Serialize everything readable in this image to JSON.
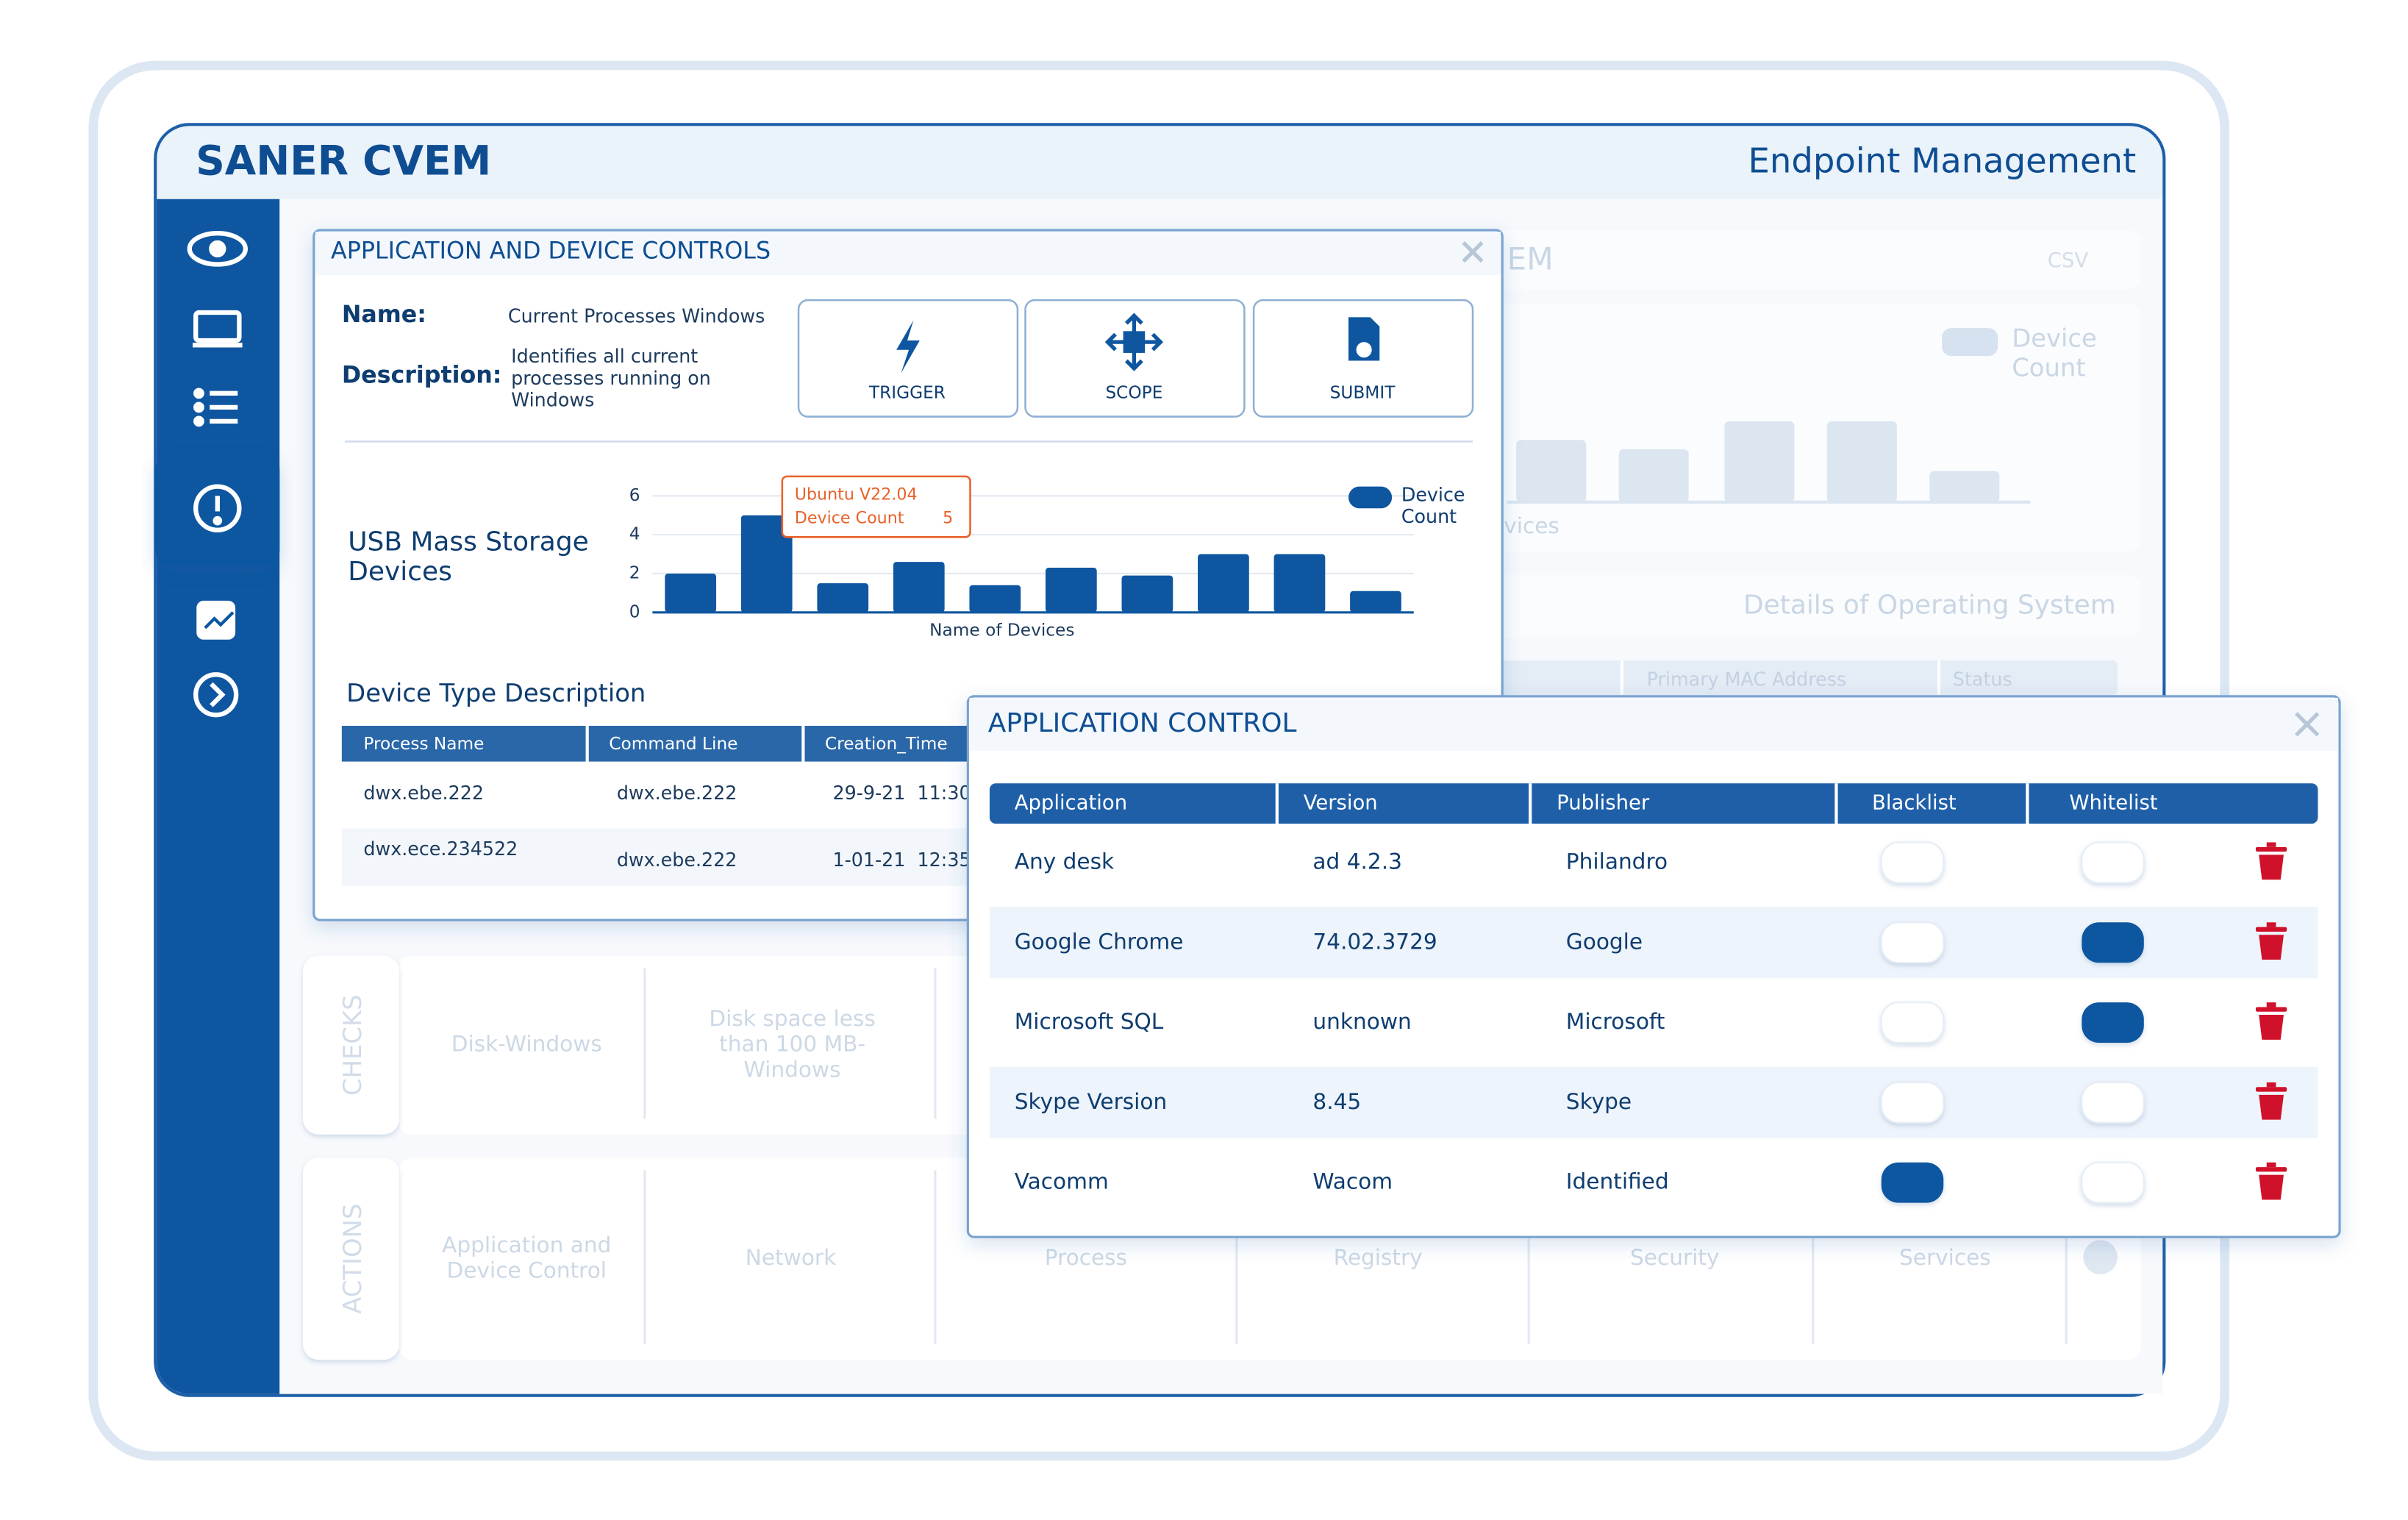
{
  "header": {
    "title": "SANER CVEM",
    "subtitle": "Endpoint Management"
  },
  "background": {
    "panel_title": "EM",
    "csv": "CSV",
    "legend": [
      "Device",
      "Count"
    ],
    "axis_fragment": "vices",
    "os_title": "Details of Operating System",
    "columns": [
      "Primary MAC Address",
      "Status"
    ],
    "checks": {
      "label": "CHECKS",
      "items": [
        [
          "Disk-Windows"
        ],
        [
          "Disk space less",
          "than 100 MB-",
          "Windows"
        ]
      ]
    },
    "actions": {
      "label": "ACTIONS",
      "items": [
        [
          "Application and",
          "Device Control"
        ],
        [
          "Network"
        ],
        [
          "Process"
        ],
        [
          "Registry"
        ],
        [
          "Security"
        ],
        [
          "Services"
        ]
      ]
    }
  },
  "device_controls": {
    "title": "APPLICATION AND DEVICE CONTROLS",
    "name_label": "Name:",
    "name": "Current Processes Windows",
    "description_label": "Description:",
    "description": [
      "Identifies all current",
      "processes running on",
      "Windows"
    ],
    "buttons": [
      "TRIGGER",
      "SCOPE",
      "SUBMIT"
    ],
    "table": {
      "title": "Device Type Description",
      "columns": [
        "Process Name",
        "Command Line",
        "Creation_Time"
      ],
      "rows": [
        [
          "dwx.ebe.222",
          "dwx.ebe.222",
          "29-9-21  11:30"
        ],
        [
          "dwx.ece.234522",
          "dwx.ebe.222",
          "1-01-21  12:35"
        ]
      ]
    }
  },
  "chart_data": {
    "type": "bar",
    "title": [
      "USB Mass Storage",
      "Devices"
    ],
    "xlabel": "Name of Devices",
    "categories": [
      null,
      "Ubuntu V22.04",
      null,
      null,
      null,
      null,
      null,
      null,
      null,
      null
    ],
    "series": [
      {
        "name": "Device Count",
        "color": "#0e56a0",
        "values": [
          2,
          5,
          1.5,
          2.6,
          1.4,
          2.3,
          1.9,
          3,
          3,
          1.1
        ]
      }
    ],
    "ylim": [
      0,
      6
    ],
    "yticks": [
      0,
      2,
      4,
      6
    ],
    "grid": true
  },
  "application_control": {
    "title": "APPLICATION CONTROL",
    "columns": [
      "Application",
      "Version",
      "Publisher",
      "Blacklist",
      "Whitelist"
    ],
    "rows": [
      {
        "application": "Any desk",
        "version": "ad 4.2.3",
        "publisher": "Philandro",
        "blacklist": false,
        "whitelist": false
      },
      {
        "application": "Google Chrome",
        "version": "74.02.3729",
        "publisher": "Google",
        "blacklist": false,
        "whitelist": true
      },
      {
        "application": "Microsoft SQL",
        "version": "unknown",
        "publisher": "Microsoft",
        "blacklist": false,
        "whitelist": true
      },
      {
        "application": "Skype Version",
        "version": "8.45",
        "publisher": "Skype",
        "blacklist": false,
        "whitelist": false
      },
      {
        "application": "Vacomm",
        "version": "Wacom",
        "publisher": "Identified",
        "blacklist": true,
        "whitelist": false
      }
    ]
  }
}
